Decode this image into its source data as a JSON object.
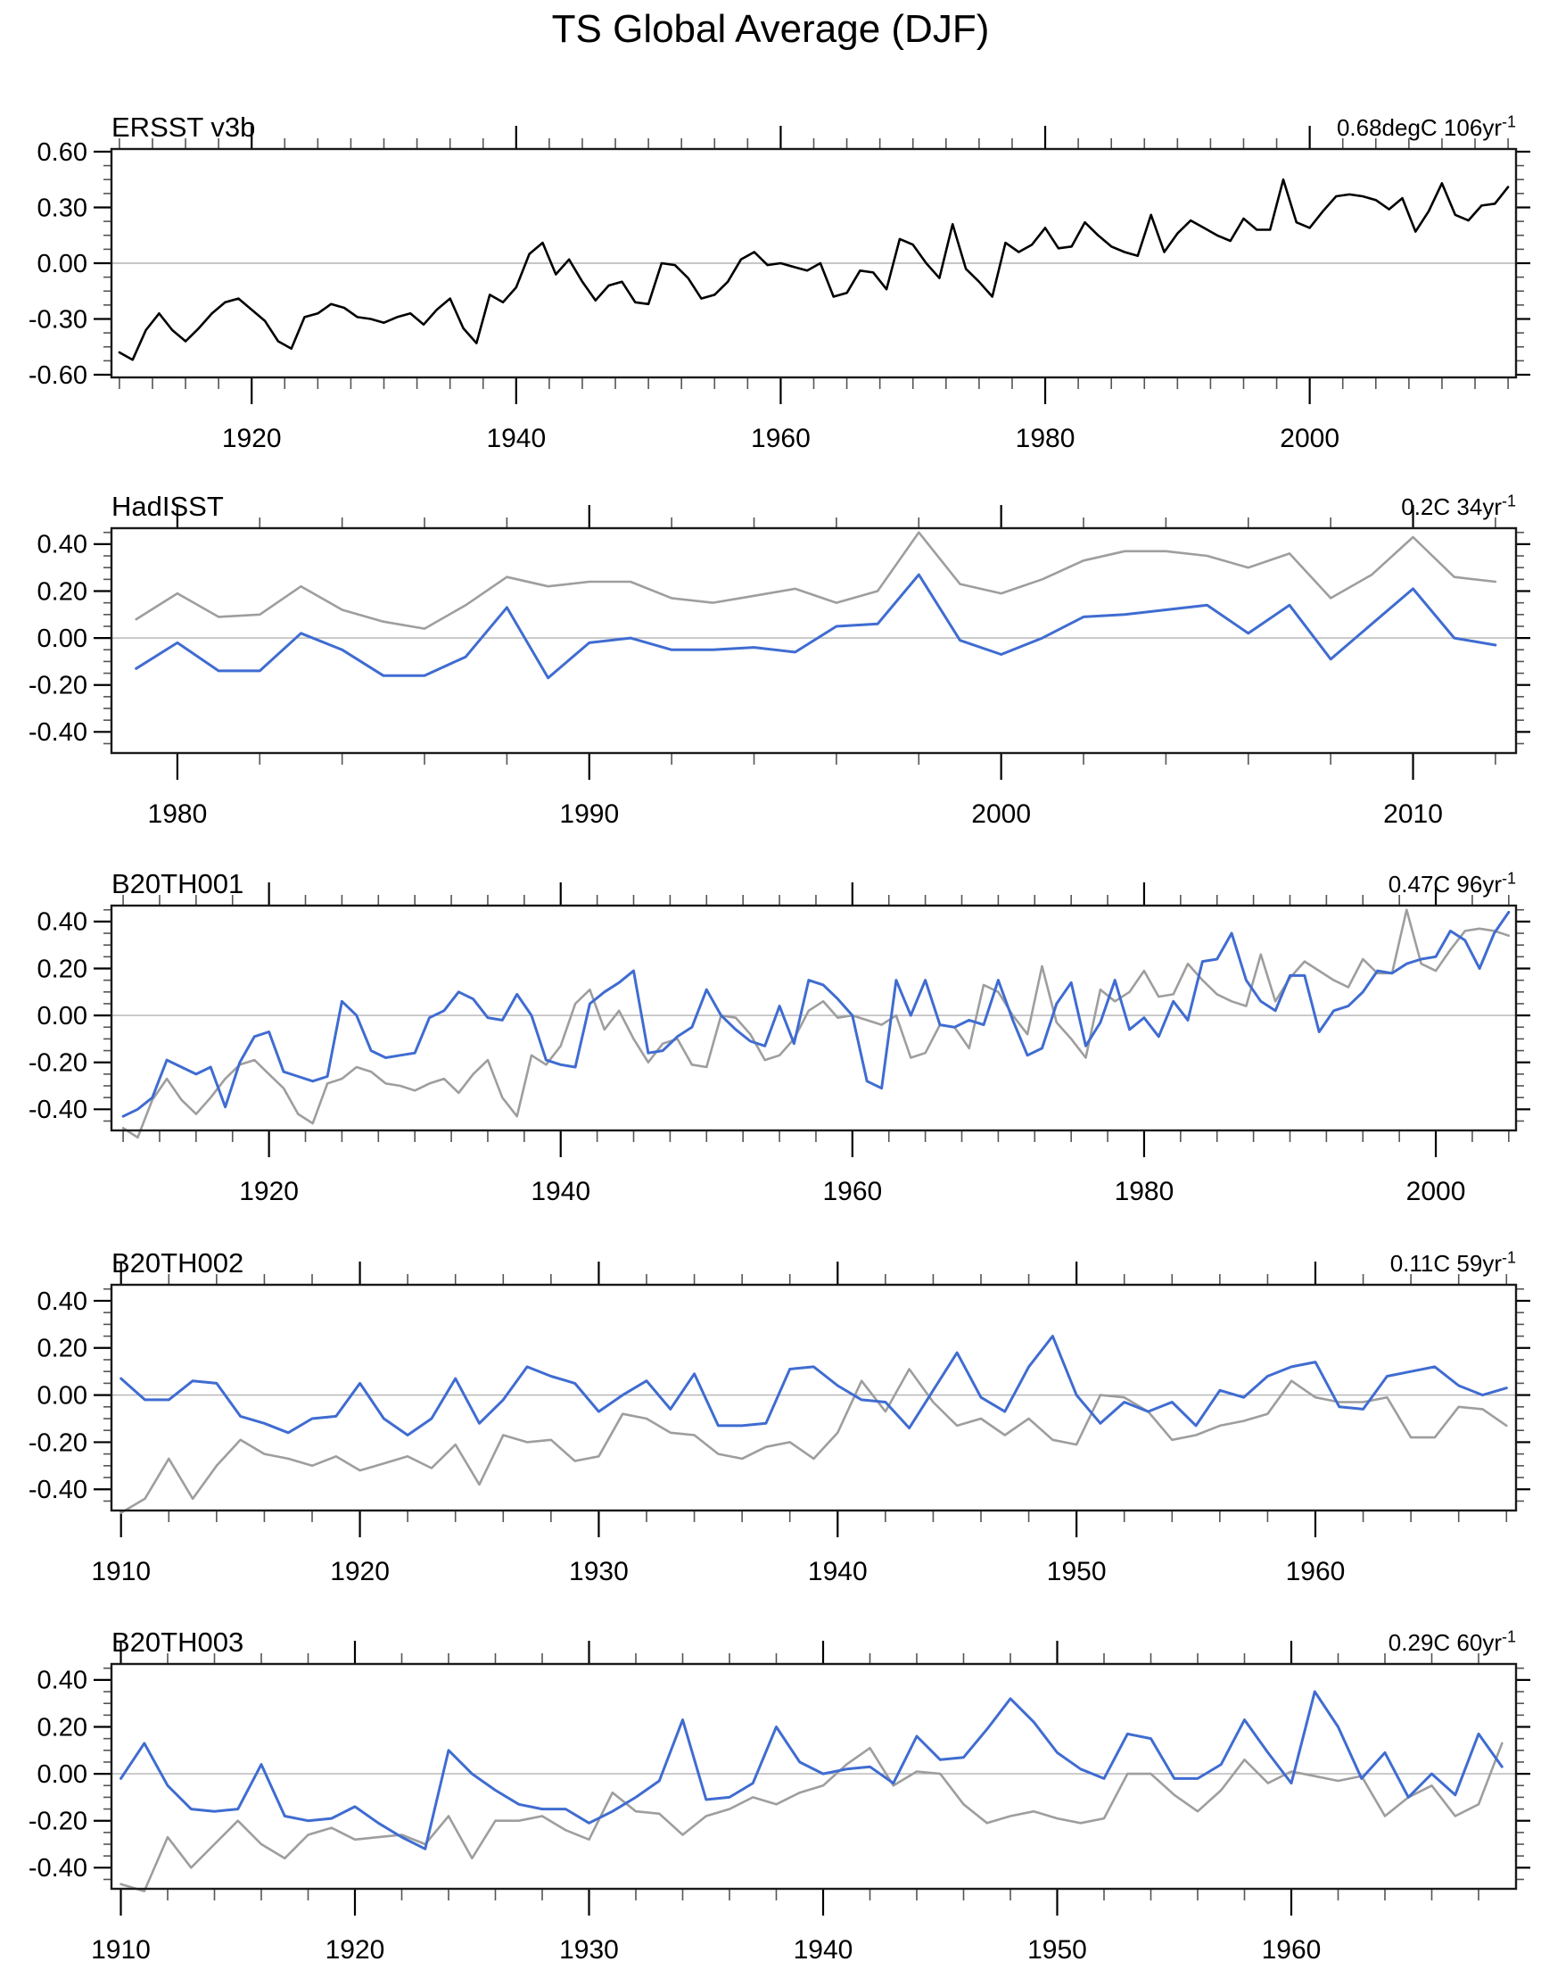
{
  "page_title": "TS Global Average (DJF)",
  "chart_data": [
    {
      "type": "line",
      "title": "ERSST v3b",
      "trend_label": "0.68degC 106yr",
      "trend_exp": "-1",
      "x_range": [
        1909.4,
        2015.6
      ],
      "y_range": [
        -0.6144,
        0.6144
      ],
      "x_major_ticks": [
        1920,
        1940,
        1960,
        1980,
        2000
      ],
      "x_minor_step": 2.5,
      "y_major_ticks": [
        {
          "value": 0.6,
          "label": "0.60"
        },
        {
          "value": 0.3,
          "label": "0.30"
        },
        {
          "value": 0.0,
          "label": "0.00"
        },
        {
          "value": -0.3,
          "label": "-0.30"
        },
        {
          "value": -0.6,
          "label": "-0.60"
        }
      ],
      "y_minor_step": 0.075,
      "grid_zero_line": true,
      "legend": "none",
      "series": [
        {
          "name": "ERSST v3b",
          "color": "#000000",
          "width": 2.6,
          "start_year": 1910,
          "values": [
            -0.48,
            -0.52,
            -0.36,
            -0.27,
            -0.36,
            -0.42,
            -0.35,
            -0.27,
            -0.21,
            -0.19,
            -0.25,
            -0.31,
            -0.42,
            -0.46,
            -0.29,
            -0.27,
            -0.22,
            -0.24,
            -0.29,
            -0.3,
            -0.32,
            -0.29,
            -0.27,
            -0.33,
            -0.25,
            -0.19,
            -0.35,
            -0.43,
            -0.17,
            -0.21,
            -0.13,
            0.05,
            0.11,
            -0.06,
            0.02,
            -0.1,
            -0.2,
            -0.12,
            -0.1,
            -0.21,
            -0.22,
            0.0,
            -0.01,
            -0.08,
            -0.19,
            -0.17,
            -0.1,
            0.02,
            0.06,
            -0.01,
            0.0,
            -0.02,
            -0.04,
            0.0,
            -0.18,
            -0.16,
            -0.04,
            -0.05,
            -0.14,
            0.13,
            0.1,
            0.0,
            -0.08,
            0.21,
            -0.03,
            -0.1,
            -0.18,
            0.11,
            0.06,
            0.1,
            0.19,
            0.08,
            0.09,
            0.22,
            0.15,
            0.09,
            0.06,
            0.04,
            0.26,
            0.06,
            0.16,
            0.23,
            0.19,
            0.15,
            0.12,
            0.24,
            0.18,
            0.18,
            0.45,
            0.22,
            0.19,
            0.28,
            0.36,
            0.37,
            0.36,
            0.34,
            0.29,
            0.35,
            0.17,
            0.28,
            0.43,
            0.26,
            0.23,
            0.31,
            0.32,
            0.41
          ]
        }
      ]
    },
    {
      "type": "line",
      "title": "HadISST",
      "trend_label": "0.2C 34yr",
      "trend_exp": "-1",
      "x_range": [
        1978.4,
        2012.5
      ],
      "y_range": [
        -0.49,
        0.468
      ],
      "x_major_ticks": [
        1980,
        1990,
        2000,
        2010
      ],
      "x_minor_step": 2,
      "y_major_ticks": [
        {
          "value": 0.4,
          "label": "0.40"
        },
        {
          "value": 0.2,
          "label": "0.20"
        },
        {
          "value": 0.0,
          "label": "0.00"
        },
        {
          "value": -0.2,
          "label": "-0.20"
        },
        {
          "value": -0.4,
          "label": "-0.40"
        }
      ],
      "y_minor_step": 0.05,
      "grid_zero_line": true,
      "legend": "none",
      "series": [
        {
          "name": "reference (gray)",
          "color": "#9e9e9e",
          "width": 2.6,
          "start_year": 1979,
          "values": [
            0.08,
            0.19,
            0.09,
            0.1,
            0.22,
            0.12,
            0.07,
            0.04,
            0.14,
            0.26,
            0.22,
            0.24,
            0.24,
            0.17,
            0.15,
            0.18,
            0.21,
            0.15,
            0.2,
            0.45,
            0.23,
            0.19,
            0.25,
            0.33,
            0.37,
            0.37,
            0.35,
            0.3,
            0.36,
            0.17,
            0.27,
            0.43,
            0.26,
            0.24
          ]
        },
        {
          "name": "HadISST (blue)",
          "color": "#3f6cd1",
          "width": 3.0,
          "start_year": 1979,
          "values": [
            -0.13,
            -0.02,
            -0.14,
            -0.14,
            0.02,
            -0.05,
            -0.16,
            -0.16,
            -0.08,
            0.13,
            -0.17,
            -0.02,
            0.0,
            -0.05,
            -0.05,
            -0.04,
            -0.06,
            0.05,
            0.06,
            0.27,
            -0.01,
            -0.07,
            0.0,
            0.09,
            0.1,
            0.12,
            0.14,
            0.02,
            0.14,
            -0.09,
            0.06,
            0.21,
            0.0,
            -0.03
          ]
        }
      ]
    },
    {
      "type": "line",
      "title": "B20TH001",
      "trend_label": "0.47C 96yr",
      "trend_exp": "-1",
      "x_range": [
        1909.2,
        2005.5
      ],
      "y_range": [
        -0.49,
        0.468
      ],
      "x_major_ticks": [
        1920,
        1940,
        1960,
        1980,
        2000
      ],
      "x_minor_step": 2.5,
      "y_major_ticks": [
        {
          "value": 0.4,
          "label": "0.40"
        },
        {
          "value": 0.2,
          "label": "0.20"
        },
        {
          "value": 0.0,
          "label": "0.00"
        },
        {
          "value": -0.2,
          "label": "-0.20"
        },
        {
          "value": -0.4,
          "label": "-0.40"
        }
      ],
      "y_minor_step": 0.05,
      "grid_zero_line": true,
      "legend": "none",
      "series": [
        {
          "name": "reference (gray)",
          "color": "#9e9e9e",
          "width": 2.6,
          "start_year": 1910,
          "values": [
            -0.48,
            -0.52,
            -0.36,
            -0.27,
            -0.36,
            -0.42,
            -0.35,
            -0.27,
            -0.21,
            -0.19,
            -0.25,
            -0.31,
            -0.42,
            -0.46,
            -0.29,
            -0.27,
            -0.22,
            -0.24,
            -0.29,
            -0.3,
            -0.32,
            -0.29,
            -0.27,
            -0.33,
            -0.25,
            -0.19,
            -0.35,
            -0.43,
            -0.17,
            -0.21,
            -0.13,
            0.05,
            0.11,
            -0.06,
            0.02,
            -0.1,
            -0.2,
            -0.12,
            -0.1,
            -0.21,
            -0.22,
            0.0,
            -0.01,
            -0.08,
            -0.19,
            -0.17,
            -0.1,
            0.02,
            0.06,
            -0.01,
            0.0,
            -0.02,
            -0.04,
            0.0,
            -0.18,
            -0.16,
            -0.04,
            -0.05,
            -0.14,
            0.13,
            0.1,
            0.0,
            -0.08,
            0.21,
            -0.03,
            -0.1,
            -0.18,
            0.11,
            0.06,
            0.1,
            0.19,
            0.08,
            0.09,
            0.22,
            0.15,
            0.09,
            0.06,
            0.04,
            0.26,
            0.06,
            0.16,
            0.23,
            0.19,
            0.15,
            0.12,
            0.24,
            0.18,
            0.18,
            0.45,
            0.22,
            0.19,
            0.28,
            0.36,
            0.37,
            0.36,
            0.34
          ]
        },
        {
          "name": "B20TH001 (blue)",
          "color": "#3f6cd1",
          "width": 3.0,
          "start_year": 1910,
          "values": [
            -0.43,
            -0.4,
            -0.35,
            -0.19,
            -0.22,
            -0.25,
            -0.22,
            -0.39,
            -0.2,
            -0.09,
            -0.07,
            -0.24,
            -0.26,
            -0.28,
            -0.26,
            0.06,
            0.0,
            -0.15,
            -0.18,
            -0.17,
            -0.16,
            -0.01,
            0.02,
            0.1,
            0.07,
            -0.01,
            -0.02,
            0.09,
            0.0,
            -0.19,
            -0.21,
            -0.22,
            0.05,
            0.1,
            0.14,
            0.19,
            -0.16,
            -0.15,
            -0.09,
            -0.05,
            0.11,
            0.0,
            -0.06,
            -0.11,
            -0.13,
            0.04,
            -0.12,
            0.15,
            0.13,
            0.07,
            0.0,
            -0.28,
            -0.31,
            0.15,
            0.0,
            0.15,
            -0.04,
            -0.05,
            -0.02,
            -0.04,
            0.15,
            -0.02,
            -0.17,
            -0.14,
            0.05,
            0.14,
            -0.13,
            -0.03,
            0.15,
            -0.06,
            -0.01,
            -0.09,
            0.06,
            -0.02,
            0.23,
            0.24,
            0.35,
            0.15,
            0.06,
            0.02,
            0.17,
            0.17,
            -0.07,
            0.02,
            0.04,
            0.1,
            0.19,
            0.18,
            0.22,
            0.24,
            0.25,
            0.36,
            0.32,
            0.2,
            0.35,
            0.44
          ]
        }
      ]
    },
    {
      "type": "line",
      "title": "B20TH002",
      "trend_label": "0.11C 59yr",
      "trend_exp": "-1",
      "x_range": [
        1909.6,
        1968.4
      ],
      "y_range": [
        -0.49,
        0.468
      ],
      "x_major_ticks": [
        1910,
        1920,
        1930,
        1940,
        1950,
        1960
      ],
      "x_minor_step": 2,
      "y_major_ticks": [
        {
          "value": 0.4,
          "label": "0.40"
        },
        {
          "value": 0.2,
          "label": "0.20"
        },
        {
          "value": 0.0,
          "label": "0.00"
        },
        {
          "value": -0.2,
          "label": "-0.20"
        },
        {
          "value": -0.4,
          "label": "-0.40"
        }
      ],
      "y_minor_step": 0.05,
      "grid_zero_line": true,
      "legend": "none",
      "series": [
        {
          "name": "reference (gray)",
          "color": "#9e9e9e",
          "width": 2.6,
          "start_year": 1910,
          "values": [
            -0.5,
            -0.44,
            -0.27,
            -0.44,
            -0.3,
            -0.19,
            -0.25,
            -0.27,
            -0.3,
            -0.26,
            -0.32,
            -0.29,
            -0.26,
            -0.31,
            -0.21,
            -0.38,
            -0.17,
            -0.2,
            -0.19,
            -0.28,
            -0.26,
            -0.08,
            -0.1,
            -0.16,
            -0.17,
            -0.25,
            -0.27,
            -0.22,
            -0.2,
            -0.27,
            -0.16,
            0.06,
            -0.07,
            0.11,
            -0.03,
            -0.13,
            -0.1,
            -0.17,
            -0.1,
            -0.19,
            -0.21,
            0.0,
            -0.01,
            -0.07,
            -0.19,
            -0.17,
            -0.13,
            -0.11,
            -0.08,
            0.06,
            -0.01,
            -0.03,
            -0.03,
            -0.01,
            -0.18,
            -0.18,
            -0.05,
            -0.06,
            -0.13
          ]
        },
        {
          "name": "B20TH002 (blue)",
          "color": "#3f6cd1",
          "width": 3.0,
          "start_year": 1910,
          "values": [
            0.07,
            -0.02,
            -0.02,
            0.06,
            0.05,
            -0.09,
            -0.12,
            -0.16,
            -0.1,
            -0.09,
            0.05,
            -0.1,
            -0.17,
            -0.1,
            0.07,
            -0.12,
            -0.02,
            0.12,
            0.08,
            0.05,
            -0.07,
            0.0,
            0.06,
            -0.06,
            0.09,
            -0.13,
            -0.13,
            -0.12,
            0.11,
            0.12,
            0.04,
            -0.02,
            -0.03,
            -0.14,
            0.02,
            0.18,
            -0.01,
            -0.07,
            0.12,
            0.25,
            0.0,
            -0.12,
            -0.03,
            -0.07,
            -0.03,
            -0.13,
            0.02,
            -0.01,
            0.08,
            0.12,
            0.14,
            -0.05,
            -0.06,
            0.08,
            0.1,
            0.12,
            0.04,
            0.0,
            0.03
          ]
        }
      ]
    },
    {
      "type": "line",
      "title": "B20TH003",
      "trend_label": "0.29C 60yr",
      "trend_exp": "-1",
      "x_range": [
        1909.6,
        1969.6
      ],
      "y_range": [
        -0.49,
        0.468
      ],
      "x_major_ticks": [
        1910,
        1920,
        1930,
        1940,
        1950,
        1960
      ],
      "x_minor_step": 2,
      "y_major_ticks": [
        {
          "value": 0.4,
          "label": "0.40"
        },
        {
          "value": 0.2,
          "label": "0.20"
        },
        {
          "value": 0.0,
          "label": "0.00"
        },
        {
          "value": -0.2,
          "label": "-0.20"
        },
        {
          "value": -0.4,
          "label": "-0.40"
        }
      ],
      "y_minor_step": 0.05,
      "grid_zero_line": true,
      "legend": "none",
      "series": [
        {
          "name": "reference (gray)",
          "color": "#9e9e9e",
          "width": 2.6,
          "start_year": 1910,
          "values": [
            -0.47,
            -0.5,
            -0.27,
            -0.4,
            -0.3,
            -0.2,
            -0.3,
            -0.36,
            -0.26,
            -0.23,
            -0.28,
            -0.27,
            -0.26,
            -0.3,
            -0.18,
            -0.36,
            -0.2,
            -0.2,
            -0.18,
            -0.24,
            -0.28,
            -0.08,
            -0.16,
            -0.17,
            -0.26,
            -0.18,
            -0.15,
            -0.1,
            -0.13,
            -0.08,
            -0.05,
            0.04,
            0.11,
            -0.05,
            0.01,
            0.0,
            -0.13,
            -0.21,
            -0.18,
            -0.16,
            -0.19,
            -0.21,
            -0.19,
            0.0,
            0.0,
            -0.09,
            -0.16,
            -0.07,
            0.06,
            -0.04,
            0.01,
            -0.01,
            -0.03,
            -0.01,
            -0.18,
            -0.1,
            -0.05,
            -0.18,
            -0.13,
            0.13
          ]
        },
        {
          "name": "B20TH003 (blue)",
          "color": "#3f6cd1",
          "width": 3.0,
          "start_year": 1910,
          "values": [
            -0.02,
            0.13,
            -0.05,
            -0.15,
            -0.16,
            -0.15,
            0.04,
            -0.18,
            -0.2,
            -0.19,
            -0.14,
            -0.21,
            -0.27,
            -0.32,
            0.1,
            0.0,
            -0.07,
            -0.13,
            -0.15,
            -0.15,
            -0.21,
            -0.16,
            -0.1,
            -0.03,
            0.23,
            -0.11,
            -0.1,
            -0.04,
            0.2,
            0.05,
            0.0,
            0.02,
            0.03,
            -0.04,
            0.16,
            0.06,
            0.07,
            0.19,
            0.32,
            0.22,
            0.09,
            0.02,
            -0.02,
            0.17,
            0.15,
            -0.02,
            -0.02,
            0.04,
            0.23,
            0.09,
            -0.04,
            0.35,
            0.2,
            -0.02,
            0.09,
            -0.1,
            0.0,
            -0.09,
            0.17,
            0.03
          ]
        }
      ]
    }
  ]
}
